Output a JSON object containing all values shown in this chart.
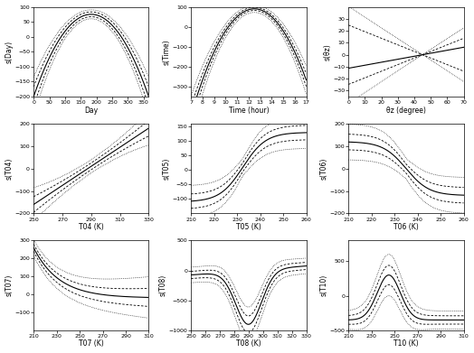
{
  "subplots": [
    {
      "xlabel": "Day",
      "ylabel": "s(Day)",
      "xmin": 0,
      "xmax": 366,
      "ymin": -200,
      "ymax": 100,
      "xticks": [
        0,
        50,
        100,
        150,
        200,
        250,
        300,
        350
      ],
      "yticks": [
        -200,
        -150,
        -100,
        -50,
        0,
        50,
        100
      ],
      "curve_type": "day_curve",
      "x_peak": 183
    },
    {
      "xlabel": "Time (hour)",
      "ylabel": "s(Time)",
      "xmin": 7,
      "xmax": 17,
      "ymin": -350,
      "ymax": 100,
      "xticks": [
        7,
        8,
        9,
        10,
        11,
        12,
        13,
        14,
        15,
        16,
        17
      ],
      "yticks": [
        -300,
        -200,
        -100,
        0,
        100
      ],
      "curve_type": "time_curve",
      "x_peak": 12.5
    },
    {
      "xlabel": "θz (degree)",
      "ylabel": "s(θz)",
      "xmin": 0,
      "xmax": 70,
      "ymin": -35,
      "ymax": 40,
      "xticks": [
        0,
        10,
        20,
        30,
        40,
        50,
        60,
        70
      ],
      "yticks": [
        -30,
        -20,
        -10,
        0,
        10,
        20,
        30
      ],
      "curve_type": "fan_lines"
    },
    {
      "xlabel": "T04 (K)",
      "ylabel": "s(T04)",
      "xmin": 250,
      "xmax": 330,
      "ymin": -200,
      "ymax": 200,
      "xticks": [
        250,
        270,
        290,
        310,
        330
      ],
      "yticks": [
        -200,
        -100,
        0,
        100,
        200
      ],
      "curve_type": "t04_curve"
    },
    {
      "xlabel": "T05 (K)",
      "ylabel": "s(T05)",
      "xmin": 210,
      "xmax": 260,
      "ymin": -150,
      "ymax": 160,
      "xticks": [
        210,
        220,
        230,
        240,
        250,
        260
      ],
      "yticks": [
        -100,
        -50,
        0,
        50,
        100,
        150
      ],
      "curve_type": "t05_curve"
    },
    {
      "xlabel": "T06 (K)",
      "ylabel": "s(T06)",
      "xmin": 210,
      "xmax": 260,
      "ymin": -200,
      "ymax": 200,
      "xticks": [
        210,
        220,
        230,
        240,
        250,
        260
      ],
      "yticks": [
        -200,
        -100,
        0,
        100,
        200
      ],
      "curve_type": "t06_curve"
    },
    {
      "xlabel": "T07 (K)",
      "ylabel": "s(T07)",
      "xmin": 210,
      "xmax": 310,
      "ymin": -200,
      "ymax": 300,
      "xticks": [
        210,
        230,
        250,
        270,
        290,
        310
      ],
      "yticks": [
        -100,
        0,
        100,
        200,
        300
      ],
      "curve_type": "t07_curve"
    },
    {
      "xlabel": "T08 (K)",
      "ylabel": "s(T08)",
      "xmin": 250,
      "xmax": 330,
      "ymin": -1000,
      "ymax": 500,
      "xticks": [
        250,
        260,
        270,
        280,
        290,
        300,
        310,
        320,
        330
      ],
      "yticks": [
        -1000,
        -500,
        0,
        500
      ],
      "curve_type": "t08_curve"
    },
    {
      "xlabel": "T10 (K)",
      "ylabel": "s(T10)",
      "xmin": 210,
      "xmax": 310,
      "ymin": -500,
      "ymax": 800,
      "xticks": [
        210,
        230,
        250,
        270,
        290,
        310
      ],
      "yticks": [
        -500,
        0,
        500
      ],
      "curve_type": "t10_curve"
    }
  ],
  "figsize": [
    5.24,
    3.91
  ],
  "dpi": 100
}
